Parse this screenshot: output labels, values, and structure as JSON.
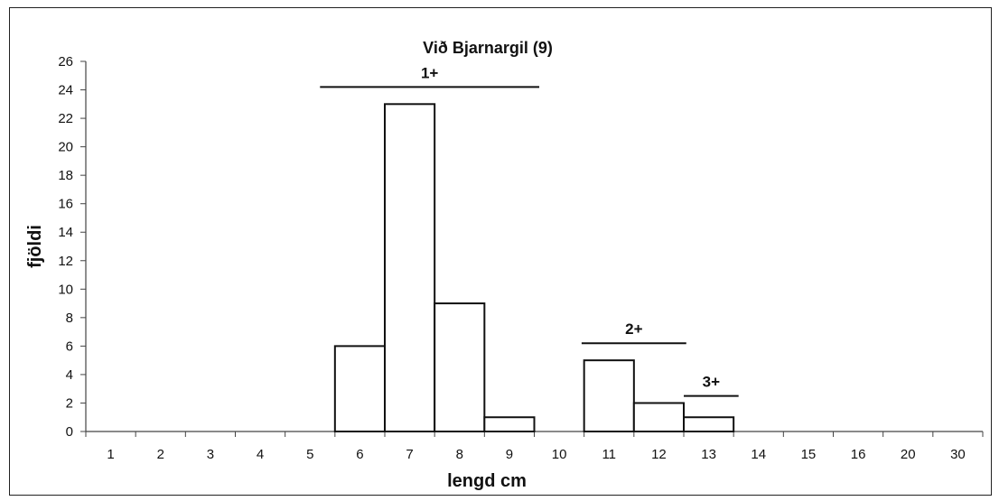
{
  "chart_data": {
    "type": "bar",
    "title": "Við Bjarnargil (9)",
    "xlabel": "lengd cm",
    "ylabel": "fjöldi",
    "categories": [
      "1",
      "2",
      "3",
      "4",
      "5",
      "6",
      "7",
      "8",
      "9",
      "10",
      "11",
      "12",
      "13",
      "14",
      "15",
      "16",
      "20",
      "30"
    ],
    "values": [
      0,
      0,
      0,
      0,
      0,
      6,
      23,
      9,
      1,
      0,
      5,
      2,
      1,
      0,
      0,
      0,
      0,
      0
    ],
    "ylim": [
      0,
      26
    ],
    "yticks": [
      0,
      2,
      4,
      6,
      8,
      10,
      12,
      14,
      16,
      18,
      20,
      22,
      24,
      26
    ],
    "grid": false,
    "bar_fill": "#ffffff",
    "bar_stroke": "#111111",
    "age_groups": [
      {
        "label": "1+",
        "from_category": "6",
        "to_category": "9"
      },
      {
        "label": "2+",
        "from_category": "11",
        "to_category": "12"
      },
      {
        "label": "3+",
        "from_category": "13",
        "to_category": "13"
      }
    ]
  }
}
